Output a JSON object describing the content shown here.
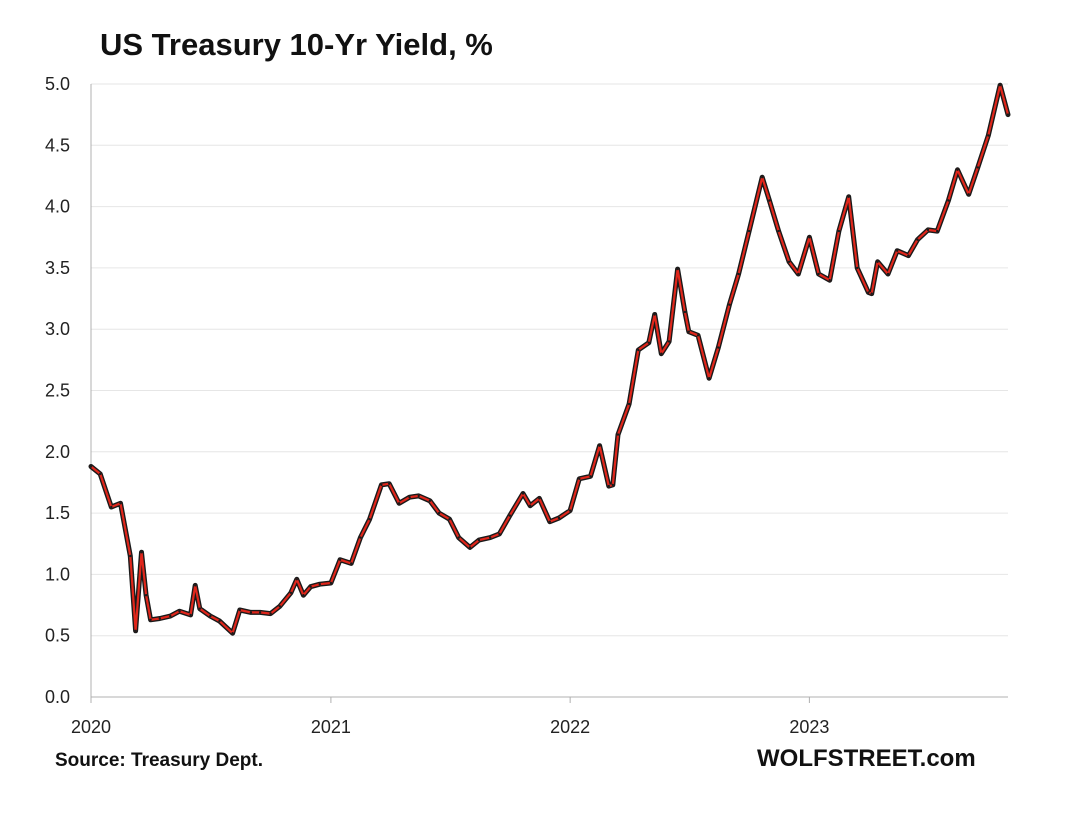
{
  "chart_data": {
    "type": "line",
    "title": "US Treasury 10-Yr Yield, %",
    "xlabel": "",
    "ylabel": "",
    "ylim": [
      0,
      5
    ],
    "yticks": [
      "0.0",
      "0.5",
      "1.0",
      "1.5",
      "2.0",
      "2.5",
      "3.0",
      "3.5",
      "4.0",
      "4.5",
      "5.0"
    ],
    "xlim": [
      "2020-01-01",
      "2023-10-31"
    ],
    "xticks": [
      "2020",
      "2021",
      "2022",
      "2023"
    ],
    "grid": "horizontal",
    "colors": {
      "line": "#e0261b",
      "line_edge": "#1a1a1a",
      "grid": "#e6e6e6",
      "axis": "#b0b0b0"
    },
    "series": [
      {
        "x": [
          "2020-01-01",
          "2020-01-15",
          "2020-02-01",
          "2020-02-15",
          "2020-03-01",
          "2020-03-09",
          "2020-03-18",
          "2020-03-25",
          "2020-04-01",
          "2020-04-15",
          "2020-05-01",
          "2020-05-15",
          "2020-06-01",
          "2020-06-08",
          "2020-06-15",
          "2020-07-01",
          "2020-07-15",
          "2020-08-04",
          "2020-08-15",
          "2020-09-01",
          "2020-09-15",
          "2020-10-01",
          "2020-10-15",
          "2020-11-01",
          "2020-11-10",
          "2020-11-20",
          "2020-12-01",
          "2020-12-15",
          "2021-01-01",
          "2021-01-15",
          "2021-02-01",
          "2021-02-15",
          "2021-03-01",
          "2021-03-19",
          "2021-03-31",
          "2021-04-15",
          "2021-05-01",
          "2021-05-15",
          "2021-06-01",
          "2021-06-15",
          "2021-07-01",
          "2021-07-15",
          "2021-08-01",
          "2021-08-15",
          "2021-09-01",
          "2021-09-15",
          "2021-10-01",
          "2021-10-21",
          "2021-11-01",
          "2021-11-15",
          "2021-12-01",
          "2021-12-15",
          "2022-01-01",
          "2022-01-15",
          "2022-02-01",
          "2022-02-15",
          "2022-03-01",
          "2022-03-07",
          "2022-03-15",
          "2022-04-01",
          "2022-04-15",
          "2022-05-01",
          "2022-05-10",
          "2022-05-20",
          "2022-06-01",
          "2022-06-14",
          "2022-06-25",
          "2022-07-01",
          "2022-07-15",
          "2022-08-01",
          "2022-08-15",
          "2022-09-01",
          "2022-09-15",
          "2022-10-01",
          "2022-10-21",
          "2022-11-01",
          "2022-11-15",
          "2022-12-01",
          "2022-12-15",
          "2023-01-01",
          "2023-01-15",
          "2023-02-01",
          "2023-02-15",
          "2023-03-02",
          "2023-03-15",
          "2023-04-01",
          "2023-04-06",
          "2023-04-15",
          "2023-05-01",
          "2023-05-15",
          "2023-06-01",
          "2023-06-15",
          "2023-07-01",
          "2023-07-15",
          "2023-08-01",
          "2023-08-15",
          "2023-09-01",
          "2023-09-15",
          "2023-10-01",
          "2023-10-19",
          "2023-10-31"
        ],
        "values": [
          1.88,
          1.82,
          1.55,
          1.58,
          1.15,
          0.54,
          1.18,
          0.83,
          0.63,
          0.64,
          0.66,
          0.7,
          0.67,
          0.91,
          0.72,
          0.66,
          0.62,
          0.52,
          0.71,
          0.69,
          0.69,
          0.68,
          0.74,
          0.85,
          0.96,
          0.83,
          0.9,
          0.92,
          0.93,
          1.12,
          1.09,
          1.3,
          1.45,
          1.73,
          1.74,
          1.58,
          1.63,
          1.64,
          1.6,
          1.5,
          1.45,
          1.3,
          1.22,
          1.28,
          1.3,
          1.33,
          1.48,
          1.66,
          1.56,
          1.62,
          1.43,
          1.46,
          1.52,
          1.78,
          1.8,
          2.05,
          1.72,
          1.73,
          2.14,
          2.39,
          2.83,
          2.89,
          3.12,
          2.8,
          2.9,
          3.49,
          3.14,
          2.98,
          2.95,
          2.6,
          2.85,
          3.2,
          3.45,
          3.8,
          4.24,
          4.05,
          3.8,
          3.55,
          3.45,
          3.75,
          3.45,
          3.4,
          3.8,
          4.08,
          3.5,
          3.3,
          3.29,
          3.55,
          3.45,
          3.64,
          3.6,
          3.73,
          3.81,
          3.8,
          4.05,
          4.3,
          4.1,
          4.32,
          4.58,
          4.99,
          4.75
        ]
      }
    ]
  },
  "footer": {
    "source": "Source: Treasury Dept.",
    "brand": "WOLFSTREET.com"
  }
}
